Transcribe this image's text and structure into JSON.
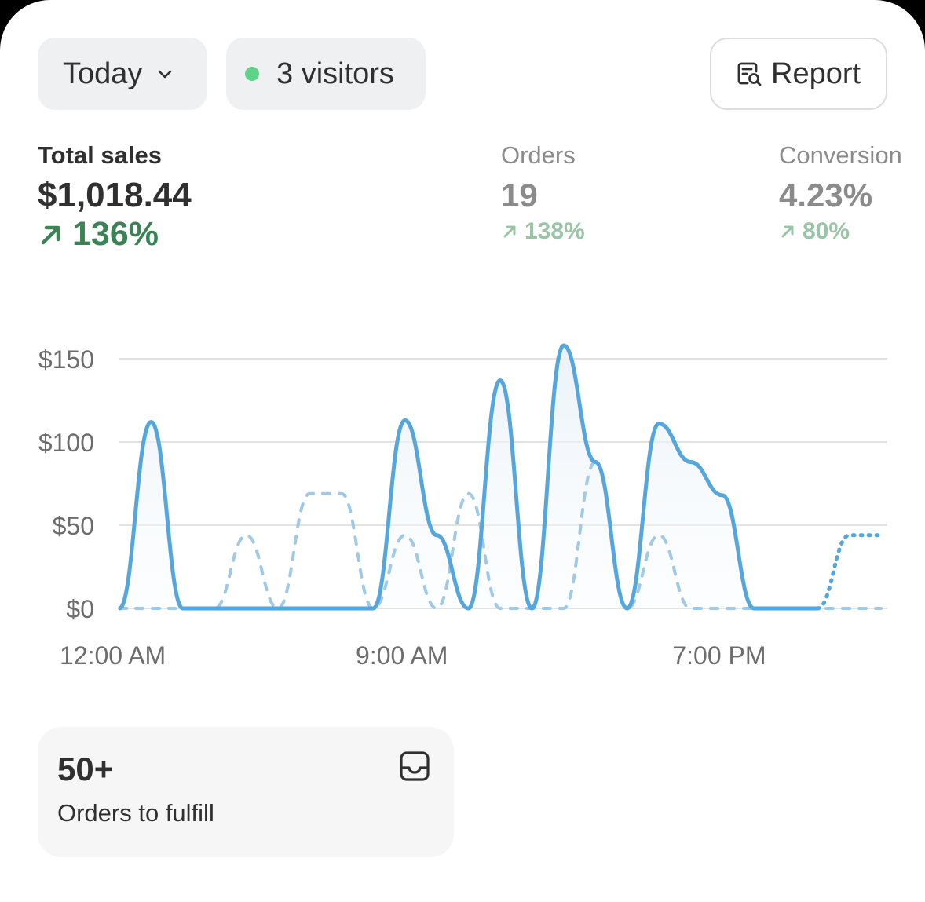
{
  "toolbar": {
    "date_range": "Today",
    "visitors": "3 visitors",
    "report_label": "Report"
  },
  "metrics": {
    "total_sales": {
      "label": "Total sales",
      "value": "$1,018.44",
      "change": "136%"
    },
    "orders": {
      "label": "Orders",
      "value": "19",
      "change": "138%"
    },
    "conversion": {
      "label": "Conversion",
      "value": "4.23%",
      "change": "80%"
    }
  },
  "colors": {
    "live_dot": "#5fd38a",
    "positive": "#3b8255",
    "positive_muted": "#99c4a5",
    "line": "#55a6dc",
    "dashed": "#9fc9e6"
  },
  "fulfill_card": {
    "count": "50+",
    "label": "Orders to fulfill",
    "icon": "inbox-tray-icon"
  },
  "chart_data": {
    "type": "line",
    "ylim": [
      0,
      160
    ],
    "y_ticks": [
      "$0",
      "$50",
      "$100",
      "$150"
    ],
    "y_tick_values": [
      0,
      50,
      100,
      150
    ],
    "x_labels": [
      "12:00 AM",
      "9:00 AM",
      "7:00 PM"
    ],
    "series": [
      {
        "style": "solid",
        "hours": [
          0,
          1,
          2,
          3,
          4,
          5,
          6,
          7,
          8,
          9,
          10,
          11,
          12,
          13,
          14,
          15,
          16,
          17,
          18,
          19,
          20,
          21,
          22
        ],
        "values": [
          0,
          112,
          0,
          0,
          0,
          0,
          0,
          0,
          0,
          113,
          44,
          0,
          137,
          0,
          158,
          88,
          0,
          111,
          88,
          68,
          0,
          0,
          0
        ]
      },
      {
        "style": "dashed",
        "hours": [
          0,
          1,
          2,
          3,
          4,
          5,
          6,
          7,
          8,
          9,
          10,
          11,
          12,
          13,
          14,
          15,
          16,
          17,
          18,
          19,
          20,
          21,
          22,
          23,
          24
        ],
        "values": [
          0,
          0,
          0,
          0,
          44,
          0,
          69,
          69,
          0,
          44,
          0,
          69,
          0,
          0,
          0,
          88,
          0,
          44,
          0,
          0,
          0,
          0,
          0,
          0,
          0
        ]
      },
      {
        "style": "dotted",
        "hours": [
          22,
          23,
          24
        ],
        "values": [
          0,
          44,
          44
        ]
      }
    ]
  }
}
